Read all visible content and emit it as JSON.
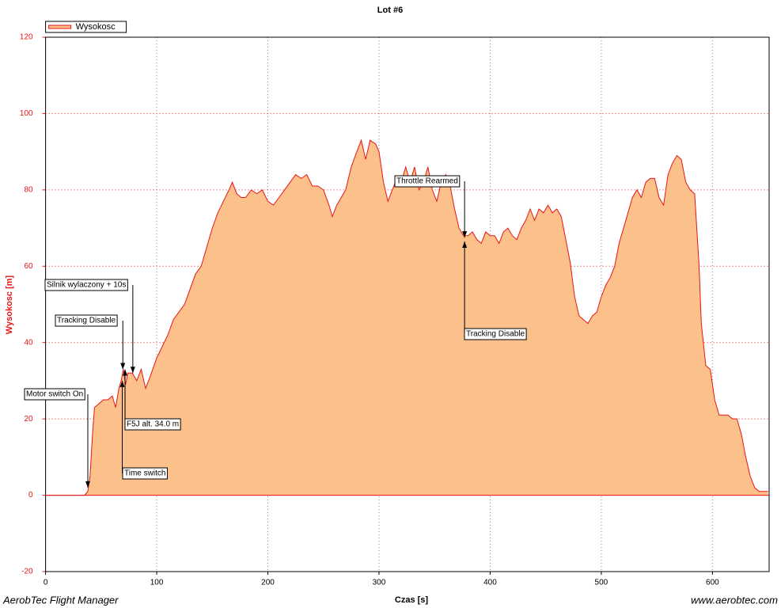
{
  "chart_data": {
    "type": "area",
    "title": "Lot #6",
    "xlabel": "Czas [s]",
    "ylabel": "Wysokosc [m]",
    "footer_left": "AerobTec Flight Manager",
    "footer_right": "www.aerobtec.com",
    "xlim": [
      0,
      651
    ],
    "ylim": [
      -20,
      120
    ],
    "xticks": [
      0,
      100,
      200,
      300,
      400,
      500,
      600
    ],
    "yticks": [
      -20,
      0,
      20,
      40,
      60,
      80,
      100,
      120
    ],
    "grid": true,
    "legend": "top-left",
    "series": [
      {
        "name": "Wysokosc",
        "color": "#e81515",
        "fill": "#fcc08a",
        "x": [
          0,
          35,
          38,
          40,
          42,
          44,
          48,
          52,
          56,
          60,
          63,
          66,
          68,
          70,
          72,
          74,
          78,
          82,
          86,
          90,
          94,
          100,
          105,
          110,
          115,
          120,
          125,
          130,
          135,
          140,
          145,
          150,
          155,
          160,
          165,
          168,
          172,
          176,
          180,
          185,
          190,
          195,
          200,
          205,
          210,
          215,
          220,
          225,
          230,
          235,
          240,
          245,
          250,
          255,
          258,
          262,
          266,
          270,
          275,
          280,
          284,
          288,
          292,
          297,
          300,
          304,
          308,
          312,
          316,
          320,
          324,
          328,
          332,
          336,
          340,
          344,
          348,
          352,
          356,
          360,
          364,
          368,
          372,
          376,
          380,
          384,
          388,
          392,
          396,
          400,
          404,
          408,
          412,
          416,
          420,
          424,
          428,
          432,
          436,
          440,
          444,
          448,
          452,
          456,
          460,
          464,
          468,
          472,
          476,
          480,
          484,
          488,
          492,
          496,
          500,
          504,
          508,
          512,
          516,
          520,
          524,
          528,
          532,
          536,
          540,
          544,
          548,
          552,
          556,
          560,
          564,
          568,
          572,
          576,
          580,
          584,
          588,
          590,
          594,
          598,
          602,
          606,
          610,
          614,
          618,
          622,
          626,
          630,
          634,
          638,
          642,
          646,
          650
        ],
        "values": [
          0,
          0,
          1,
          5,
          15,
          23,
          24,
          25,
          25,
          26,
          23,
          28,
          30,
          33,
          29,
          32,
          32,
          30,
          33,
          28,
          31,
          36,
          39,
          42,
          46,
          48,
          50,
          54,
          58,
          60,
          65,
          70,
          74,
          77,
          80,
          82,
          79,
          78,
          78,
          80,
          79,
          80,
          77,
          76,
          78,
          80,
          82,
          84,
          83,
          84,
          81,
          81,
          80,
          76,
          73,
          76,
          78,
          80,
          86,
          90,
          93,
          88,
          93,
          92,
          90,
          82,
          77,
          80,
          83,
          82,
          86,
          82,
          86,
          80,
          82,
          86,
          80,
          77,
          82,
          84,
          81,
          75,
          70,
          68,
          68,
          69,
          67,
          66,
          69,
          68,
          68,
          66,
          69,
          70,
          68,
          67,
          70,
          72,
          75,
          72,
          75,
          74,
          76,
          74,
          75,
          73,
          67,
          61,
          52,
          47,
          46,
          45,
          47,
          48,
          52,
          55,
          57,
          60,
          66,
          70,
          74,
          78,
          80,
          78,
          82,
          83,
          83,
          78,
          76,
          84,
          87,
          89,
          88,
          82,
          80,
          79,
          60,
          45,
          34,
          33,
          25,
          21,
          21,
          21,
          20,
          20,
          16,
          10,
          5,
          2,
          1,
          1,
          1
        ]
      }
    ],
    "annotations": [
      {
        "text": "Motor switch On",
        "x": 38,
        "y": 2
      },
      {
        "text": "Time switch",
        "x": 69,
        "y": 30
      },
      {
        "text": "F5J alt. 34.0 m",
        "x": 71.5,
        "y": 33
      },
      {
        "text": "Tracking Disable",
        "x": 69.5,
        "y": 33
      },
      {
        "text": "Silnik wylaczony + 10s",
        "x": 78.5,
        "y": 32
      },
      {
        "text": "Throttle Rearmed",
        "x": 377,
        "y": 67.5
      },
      {
        "text": "Tracking Disable",
        "x": 377,
        "y": 66.5
      }
    ]
  }
}
